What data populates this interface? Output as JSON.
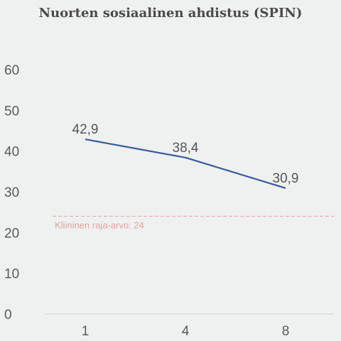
{
  "chart_data": {
    "type": "line",
    "title": "Nuorten sosiaalinen ahdistus (SPIN)",
    "xlabel": "",
    "ylabel": "",
    "x": [
      "1",
      "4",
      "8"
    ],
    "series": [
      {
        "values": [
          42.9,
          38.4,
          30.9
        ],
        "labels": [
          "42,9",
          "38,4",
          "30,9"
        ],
        "color": "#3a5ba0"
      }
    ],
    "ylim": [
      0,
      60
    ],
    "yticks": [
      0,
      10,
      20,
      30,
      40,
      50,
      60
    ],
    "grid": false,
    "reference_line": {
      "value": 24,
      "label": "Kliininen raja-arvo: 24",
      "color": "#e8a0a0",
      "style": "dashed"
    }
  }
}
